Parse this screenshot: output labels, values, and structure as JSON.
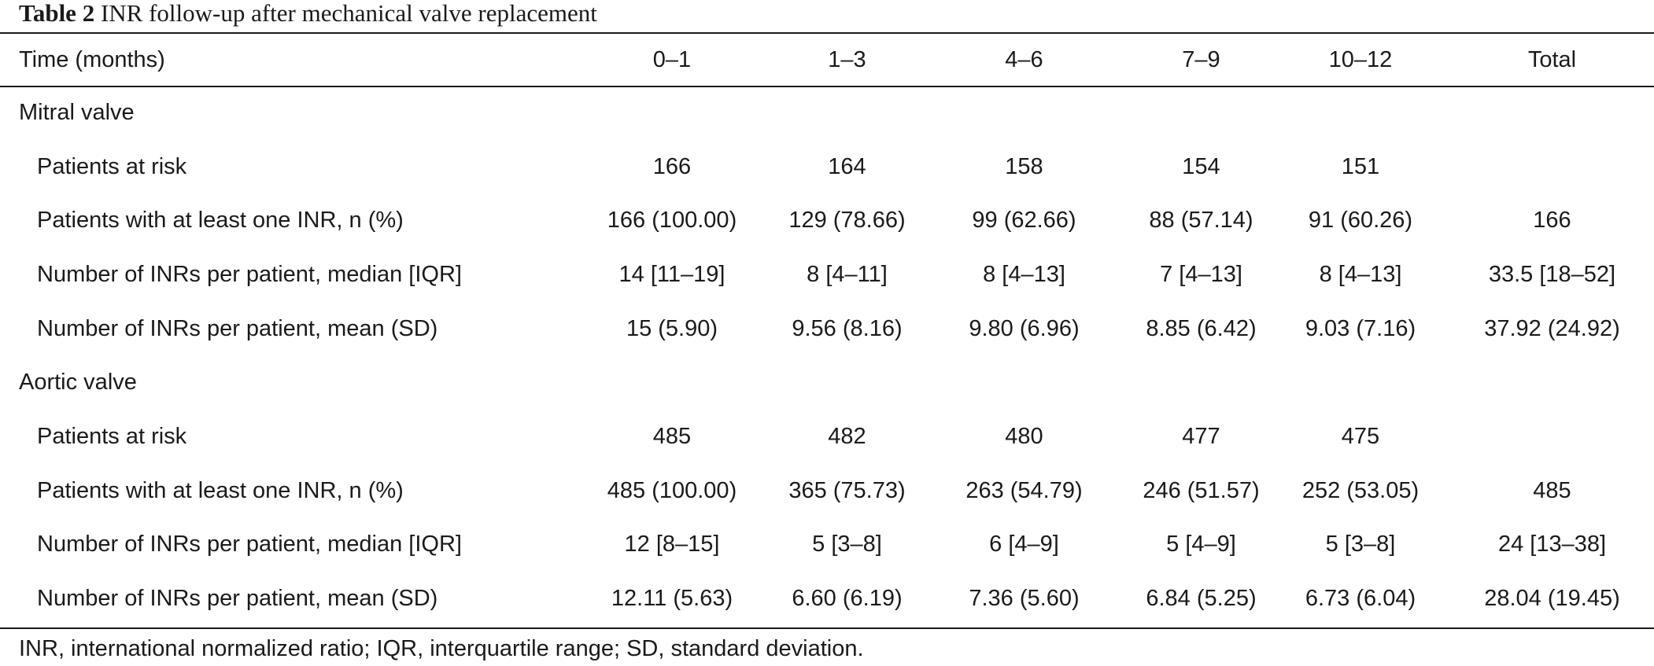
{
  "caption": {
    "label": "Table 2",
    "text": "INR follow-up after mechanical valve replacement"
  },
  "table": {
    "headers": [
      "Time (months)",
      "0–1",
      "1–3",
      "4–6",
      "7–9",
      "10–12",
      "Total"
    ],
    "groups": [
      {
        "title": "Mitral valve",
        "rows": [
          {
            "label": "Patients at risk",
            "values": [
              "166",
              "164",
              "158",
              "154",
              "151",
              ""
            ]
          },
          {
            "label": "Patients with at least one INR, n (%)",
            "values": [
              "166 (100.00)",
              "129 (78.66)",
              "99 (62.66)",
              "88 (57.14)",
              "91 (60.26)",
              "166"
            ]
          },
          {
            "label": "Number of INRs per patient, median [IQR]",
            "values": [
              "14 [11–19]",
              "8 [4–11]",
              "8 [4–13]",
              "7 [4–13]",
              "8 [4–13]",
              "33.5 [18–52]"
            ]
          },
          {
            "label": "Number of INRs per patient, mean (SD)",
            "values": [
              "15 (5.90)",
              "9.56 (8.16)",
              "9.80 (6.96)",
              "8.85 (6.42)",
              "9.03 (7.16)",
              "37.92 (24.92)"
            ]
          }
        ]
      },
      {
        "title": "Aortic valve",
        "rows": [
          {
            "label": "Patients at risk",
            "values": [
              "485",
              "482",
              "480",
              "477",
              "475",
              ""
            ]
          },
          {
            "label": "Patients with at least one INR, n (%)",
            "values": [
              "485 (100.00)",
              "365 (75.73)",
              "263 (54.79)",
              "246 (51.57)",
              "252 (53.05)",
              "485"
            ]
          },
          {
            "label": "Number of INRs per patient, median [IQR]",
            "values": [
              "12 [8–15]",
              "5 [3–8]",
              "6 [4–9]",
              "5 [4–9]",
              "5 [3–8]",
              "24 [13–38]"
            ]
          },
          {
            "label": "Number of INRs per patient, mean (SD)",
            "values": [
              "12.11 (5.63)",
              "6.60 (6.19)",
              "7.36 (5.60)",
              "6.84 (5.25)",
              "6.73 (6.04)",
              "28.04 (19.45)"
            ]
          }
        ]
      }
    ]
  },
  "footnote": "INR, international normalized ratio; IQR, interquartile range; SD, standard deviation."
}
